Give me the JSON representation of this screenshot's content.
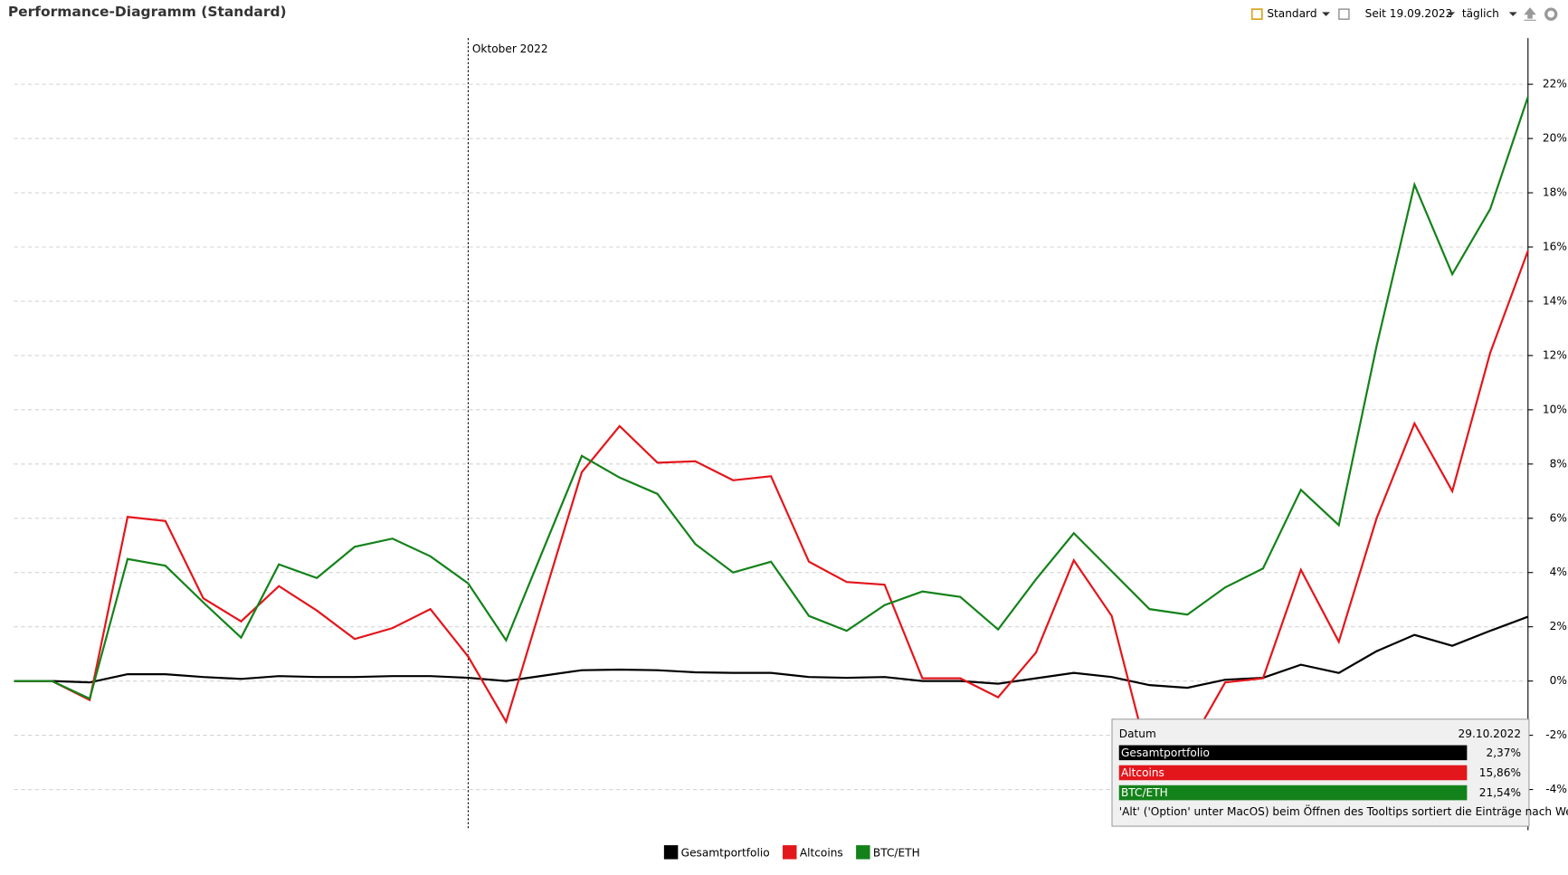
{
  "header": {
    "title": "Performance-Diagramm (Standard)"
  },
  "toolbar": {
    "view": "Standard",
    "since": "Seit 19.09.2022",
    "interval": "täglich"
  },
  "chart_data": {
    "type": "line",
    "categories": [
      null,
      null,
      null,
      null,
      null,
      null,
      null,
      null,
      null,
      null,
      null,
      null,
      "Oktober 2022",
      null,
      null,
      null,
      null,
      null,
      null,
      null,
      null,
      null,
      null,
      null,
      null,
      null,
      null,
      null,
      null,
      null,
      null,
      null,
      null,
      null,
      null,
      null,
      null,
      null,
      null,
      null,
      null
    ],
    "series": [
      {
        "name": "Gesamtportfolio",
        "color": "#000000",
        "values": [
          0,
          0,
          -0.05,
          0.25,
          0.25,
          0.15,
          0.08,
          0.18,
          0.15,
          0.15,
          0.18,
          0.18,
          0.12,
          0,
          0.2,
          0.4,
          0.42,
          0.4,
          0.32,
          0.3,
          0.3,
          0.15,
          0.12,
          0.15,
          0,
          0,
          -0.1,
          0.1,
          0.3,
          0.15,
          -0.15,
          -0.25,
          0.05,
          0.12,
          0.6,
          0.3,
          1.1,
          1.7,
          1.3,
          1.85,
          2.37
        ]
      },
      {
        "name": "Altcoins",
        "color": "#e3161c",
        "values": [
          0,
          0,
          -0.7,
          6.05,
          5.9,
          3.05,
          2.2,
          3.5,
          2.6,
          1.55,
          1.95,
          2.65,
          0.9,
          -1.5,
          3.1,
          7.7,
          9.4,
          8.05,
          8.1,
          7.4,
          7.55,
          4.4,
          3.65,
          3.55,
          0.1,
          0.1,
          -0.6,
          1.05,
          4.45,
          2.4,
          -3.0,
          -2.5,
          -0.05,
          0.1,
          4.1,
          1.45,
          6.0,
          9.5,
          7.0,
          12.1,
          15.86
        ]
      },
      {
        "name": "BTC/ETH",
        "color": "#14821a",
        "values": [
          0,
          0,
          -0.65,
          4.5,
          4.25,
          2.9,
          1.6,
          4.3,
          3.8,
          4.95,
          5.25,
          4.6,
          3.6,
          1.5,
          4.9,
          8.3,
          7.5,
          6.9,
          5.05,
          4.0,
          4.4,
          2.4,
          1.85,
          2.8,
          3.3,
          3.1,
          1.9,
          3.75,
          5.45,
          4.05,
          2.65,
          2.45,
          3.45,
          4.15,
          7.05,
          5.75,
          12.35,
          18.3,
          15.0,
          17.4,
          21.54
        ]
      }
    ],
    "ylim": [
      -5.5,
      23.7
    ],
    "yticks": [
      {
        "value": -4,
        "label": "-4%"
      },
      {
        "value": -2,
        "label": "-2%"
      },
      {
        "value": 0,
        "label": "0%"
      },
      {
        "value": 2,
        "label": "2%"
      },
      {
        "value": 4,
        "label": "4%"
      },
      {
        "value": 6,
        "label": "6%"
      },
      {
        "value": 8,
        "label": "8%"
      },
      {
        "value": 10,
        "label": "10%"
      },
      {
        "value": 12,
        "label": "12%"
      },
      {
        "value": 14,
        "label": "14%"
      },
      {
        "value": 16,
        "label": "16%"
      },
      {
        "value": 18,
        "label": "18%"
      },
      {
        "value": 20,
        "label": "20%"
      },
      {
        "value": 22,
        "label": "22%"
      }
    ],
    "grid": true,
    "legend": "bottom"
  },
  "tooltip": {
    "date_label": "Datum",
    "date": "29.10.2022",
    "rows": [
      "2,37%",
      "15,86%",
      "21,54%"
    ],
    "hint": "'Alt' ('Option' unter MacOS) beim Öffnen des Tooltips sortiert die Einträge nach Wert"
  }
}
